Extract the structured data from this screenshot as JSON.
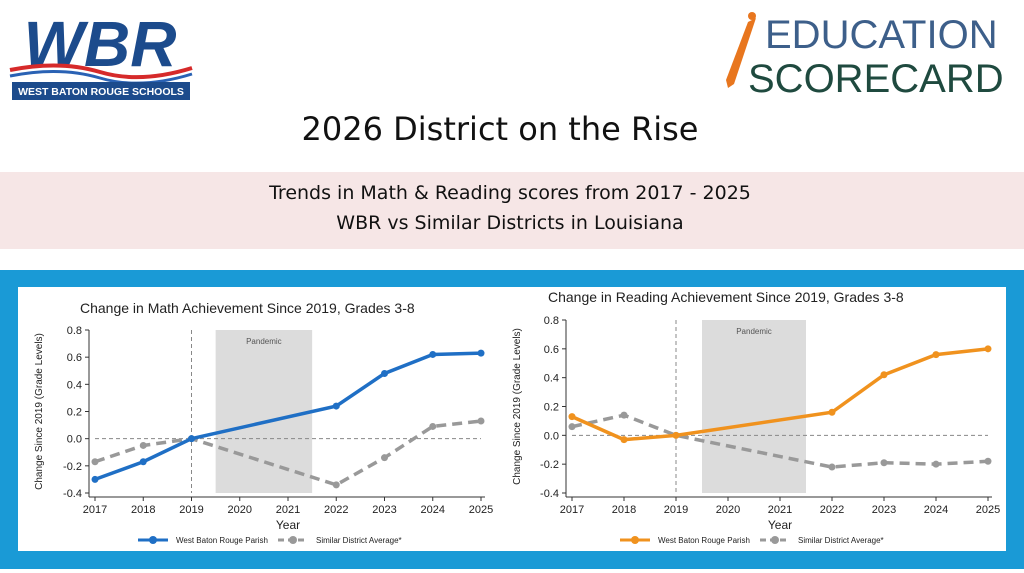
{
  "header": {
    "logo_left": {
      "name": "WBR",
      "subtitle": "WEST BATON ROUGE SCHOOLS"
    },
    "logo_right": {
      "line1": "EDUCATION",
      "line2": "SCORECARD"
    },
    "title": "2026 District on the Rise",
    "subtitle_lines": [
      "Trends in Math & Reading scores from 2017 - 2025",
      "WBR vs Similar Districts in Louisiana"
    ]
  },
  "chart_data": [
    {
      "type": "line",
      "title": "Change in Math Achievement Since 2019, Grades 3-8",
      "x_label": "Year",
      "y_label": "Change Since 2019 (Grade Levels)",
      "x": [
        2017,
        2018,
        2019,
        2022,
        2023,
        2024,
        2025
      ],
      "series": [
        {
          "name": "West Baton Rouge Parish",
          "color": "#1f6fc5",
          "dashed": false,
          "values": [
            -0.3,
            -0.17,
            0.0,
            0.24,
            0.48,
            0.62,
            0.63
          ]
        },
        {
          "name": "Similar District Average*",
          "color": "#999999",
          "dashed": true,
          "values": [
            -0.17,
            -0.05,
            0.0,
            -0.34,
            -0.14,
            0.09,
            0.13
          ]
        }
      ],
      "xlim": [
        2017,
        2025
      ],
      "xticks": [
        2017,
        2018,
        2019,
        2020,
        2021,
        2022,
        2023,
        2024,
        2025
      ],
      "ylim": [
        -0.4,
        0.8
      ],
      "yticks": [
        -0.4,
        -0.2,
        {
          "value": 0,
          "label": "0.0"
        },
        0.2,
        0.4,
        0.6,
        0.8
      ],
      "reference_x": 2019,
      "reference_y": 0,
      "shaded": {
        "label": "Pandemic",
        "range": [
          2019.5,
          2021.5
        ]
      }
    },
    {
      "type": "line",
      "title": "Change in Reading Achievement Since 2019, Grades 3-8",
      "x_label": "Year",
      "y_label": "Change Since 2019 (Grade Levels)",
      "x": [
        2017,
        2018,
        2019,
        2022,
        2023,
        2024,
        2025
      ],
      "series": [
        {
          "name": "West Baton Rouge Parish",
          "color": "#f0921e",
          "dashed": false,
          "values": [
            0.13,
            -0.03,
            0.0,
            0.16,
            0.42,
            0.56,
            0.6
          ]
        },
        {
          "name": "Similar District Average*",
          "color": "#999999",
          "dashed": true,
          "values": [
            0.06,
            0.14,
            0.0,
            -0.22,
            -0.19,
            -0.2,
            -0.18
          ]
        }
      ],
      "xlim": [
        2017,
        2025
      ],
      "xticks": [
        2017,
        2018,
        2019,
        2020,
        2021,
        2022,
        2023,
        2024,
        2025
      ],
      "ylim": [
        -0.4,
        0.8
      ],
      "yticks": [
        -0.4,
        -0.2,
        {
          "value": 0,
          "label": "0.0"
        },
        0.2,
        0.4,
        0.6,
        0.8
      ],
      "reference_x": 2019,
      "reference_y": 0,
      "shaded": {
        "label": "Pandemic",
        "range": [
          2019.5,
          2021.5
        ]
      }
    }
  ]
}
